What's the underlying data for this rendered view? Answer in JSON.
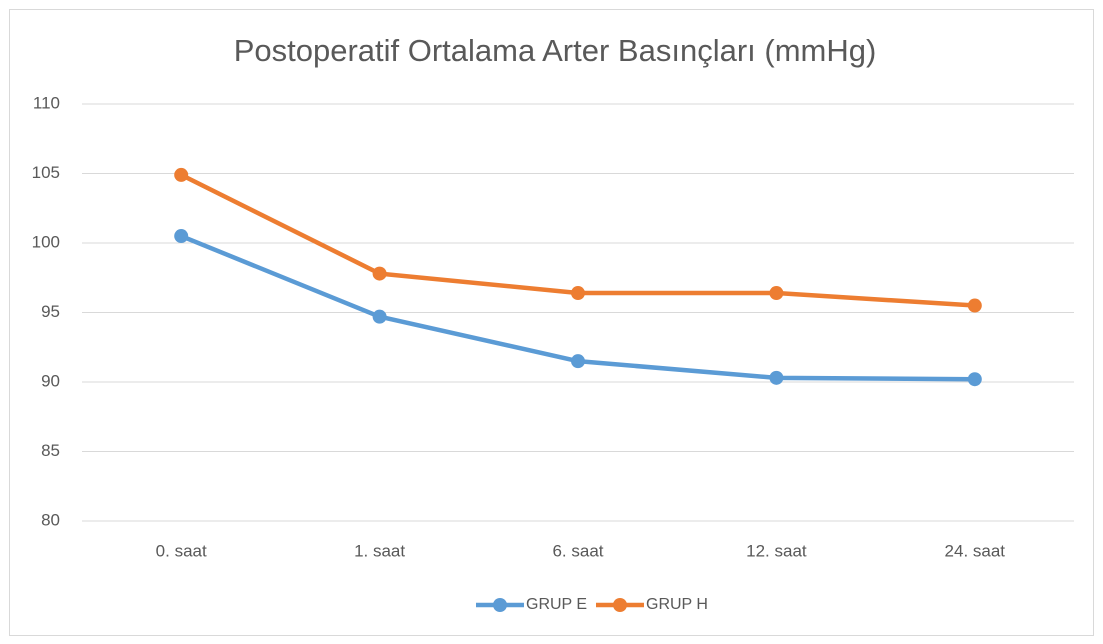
{
  "chart_data": {
    "type": "line",
    "title": "Postoperatif Ortalama Arter Basınçları (mmHg)",
    "categories": [
      "0. saat",
      "1. saat",
      "6. saat",
      "12. saat",
      "24. saat"
    ],
    "series": [
      {
        "name": "GRUP E",
        "color": "#5b9bd5",
        "values": [
          100.5,
          94.7,
          91.5,
          90.3,
          90.2
        ]
      },
      {
        "name": "GRUP H",
        "color": "#ed7d31",
        "values": [
          104.9,
          97.8,
          96.4,
          96.4,
          95.5
        ]
      }
    ],
    "ylim": [
      80,
      110
    ],
    "yticks": [
      80,
      85,
      90,
      95,
      100,
      105,
      110
    ],
    "grid": true,
    "legend": "bottom"
  }
}
